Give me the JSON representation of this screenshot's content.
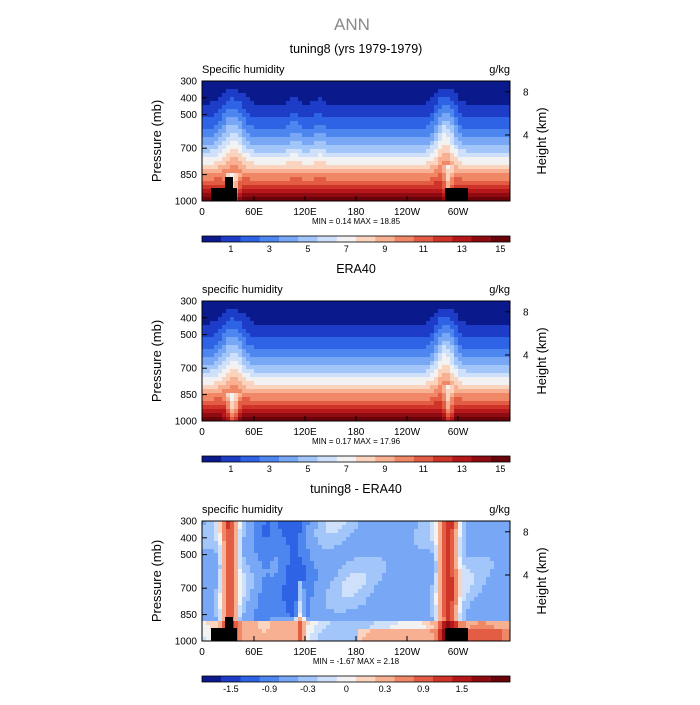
{
  "page_title": "ANN",
  "chart_data": [
    {
      "type": "heatmap",
      "title": "tuning8 (yrs 1979-1979)",
      "field_label": "Specific humidity",
      "units": "g/kg",
      "ylabel": "Pressure (mb)",
      "ylabel_right": "Height (km)",
      "x_ticks": [
        "0",
        "60E",
        "120E",
        "180",
        "120W",
        "60W"
      ],
      "y_ticks": [
        "300",
        "400",
        "500",
        "700",
        "850",
        "1000"
      ],
      "right_ticks": [
        "8",
        "4"
      ],
      "min_max": "MIN =    0.14   MAX =   18.85",
      "colorbar_labels": [
        "1",
        "3",
        "5",
        "7",
        "9",
        "11",
        "13",
        "15"
      ],
      "colorbar_colors": [
        "#0a1a8c",
        "#1d3cc7",
        "#2f63e6",
        "#4e86f0",
        "#78a8f5",
        "#a3c6fa",
        "#cfe0fb",
        "#f2f2f2",
        "#fbd4c0",
        "#f8b093",
        "#f08868",
        "#e35d45",
        "#cf3428",
        "#b5171a",
        "#8e0b12",
        "#6b040a"
      ],
      "surface": "mask",
      "ylim": [
        1000,
        300
      ]
    },
    {
      "type": "heatmap",
      "title": "ERA40",
      "field_label": "specific humidity",
      "units": "g/kg",
      "ylabel": "Pressure (mb)",
      "ylabel_right": "Height (km)",
      "x_ticks": [
        "0",
        "60E",
        "120E",
        "180",
        "120W",
        "60W"
      ],
      "y_ticks": [
        "300",
        "400",
        "500",
        "700",
        "850",
        "1000"
      ],
      "right_ticks": [
        "8",
        "4"
      ],
      "min_max": "MIN =    0.17   MAX =   17.96",
      "colorbar_labels": [
        "1",
        "3",
        "5",
        "7",
        "9",
        "11",
        "13",
        "15"
      ],
      "colorbar_colors": [
        "#0a1a8c",
        "#1d3cc7",
        "#2f63e6",
        "#4e86f0",
        "#78a8f5",
        "#a3c6fa",
        "#cfe0fb",
        "#f2f2f2",
        "#fbd4c0",
        "#f8b093",
        "#f08868",
        "#e35d45",
        "#cf3428",
        "#b5171a",
        "#8e0b12",
        "#6b040a"
      ],
      "surface": "none",
      "ylim": [
        1000,
        300
      ]
    },
    {
      "type": "heatmap",
      "title": "tuning8 - ERA40",
      "field_label": "specific humidity",
      "units": "g/kg",
      "ylabel": "Pressure (mb)",
      "ylabel_right": "Height (km)",
      "x_ticks": [
        "0",
        "60E",
        "120E",
        "180",
        "120W",
        "60W"
      ],
      "y_ticks": [
        "300",
        "400",
        "500",
        "700",
        "850",
        "1000"
      ],
      "right_ticks": [
        "8",
        "4"
      ],
      "min_max": "MIN =   -1.67   MAX =    2.18",
      "colorbar_labels": [
        "-1.5",
        "-0.9",
        "-0.3",
        "0",
        "0.3",
        "0.9",
        "1.5"
      ],
      "colorbar_colors": [
        "#0a1a8c",
        "#1d3cc7",
        "#2f63e6",
        "#4e86f0",
        "#78a8f5",
        "#a3c6fa",
        "#cfe0fb",
        "#f2f2f2",
        "#fbd4c0",
        "#f8b093",
        "#f08868",
        "#e35d45",
        "#cf3428",
        "#b5171a",
        "#8e0b12",
        "#6b040a"
      ],
      "surface": "mask",
      "ylim": [
        1000,
        300
      ]
    }
  ]
}
